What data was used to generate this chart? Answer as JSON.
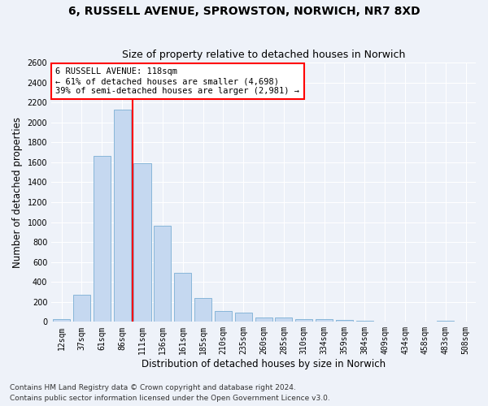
{
  "title1": "6, RUSSELL AVENUE, SPROWSTON, NORWICH, NR7 8XD",
  "title2": "Size of property relative to detached houses in Norwich",
  "xlabel": "Distribution of detached houses by size in Norwich",
  "ylabel": "Number of detached properties",
  "categories": [
    "12sqm",
    "37sqm",
    "61sqm",
    "86sqm",
    "111sqm",
    "136sqm",
    "161sqm",
    "185sqm",
    "210sqm",
    "235sqm",
    "260sqm",
    "285sqm",
    "310sqm",
    "334sqm",
    "359sqm",
    "384sqm",
    "409sqm",
    "434sqm",
    "458sqm",
    "483sqm",
    "508sqm"
  ],
  "values": [
    30,
    270,
    1660,
    2130,
    1590,
    960,
    490,
    240,
    110,
    90,
    40,
    40,
    25,
    25,
    15,
    10,
    5,
    5,
    0,
    10,
    5
  ],
  "bar_color": "#c5d8f0",
  "bar_edge_color": "#7bafd4",
  "vline_x_index": 3.5,
  "annotation_text": "6 RUSSELL AVENUE: 118sqm\n← 61% of detached houses are smaller (4,698)\n39% of semi-detached houses are larger (2,981) →",
  "annotation_box_color": "white",
  "annotation_box_edge_color": "red",
  "vline_color": "red",
  "ylim": [
    0,
    2600
  ],
  "yticks": [
    0,
    200,
    400,
    600,
    800,
    1000,
    1200,
    1400,
    1600,
    1800,
    2000,
    2200,
    2400,
    2600
  ],
  "footer1": "Contains HM Land Registry data © Crown copyright and database right 2024.",
  "footer2": "Contains public sector information licensed under the Open Government Licence v3.0.",
  "background_color": "#eef2f9",
  "grid_color": "#ffffff",
  "title_fontsize": 10,
  "subtitle_fontsize": 9,
  "tick_fontsize": 7,
  "label_fontsize": 8.5,
  "footer_fontsize": 6.5
}
